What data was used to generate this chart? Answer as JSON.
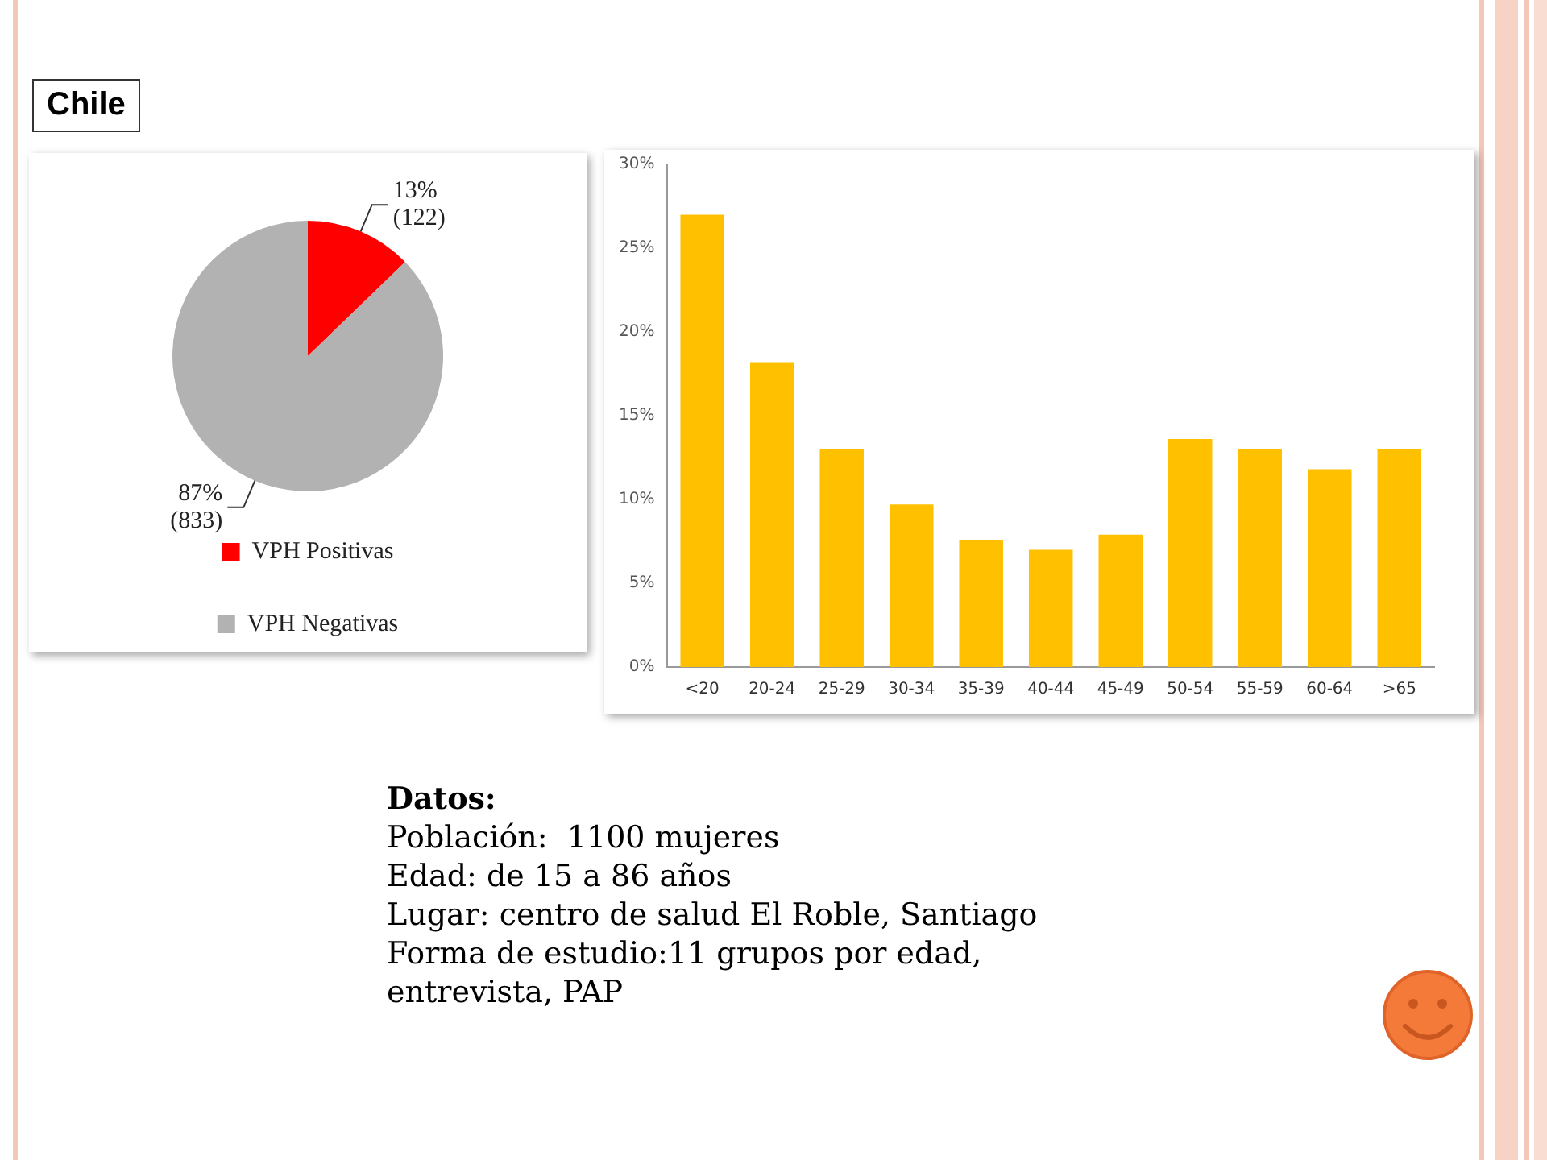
{
  "chart_data": [
    {
      "type": "pie",
      "title": "Chile",
      "categories": [
        "VPH Positivas",
        "VPH Negativas"
      ],
      "values": [
        122,
        833
      ],
      "colors": [
        "#ff0000",
        "#b2b2b2"
      ],
      "value_labels": [
        "13%\n(122)",
        "87%\n(833)"
      ],
      "legend": "bottom"
    },
    {
      "type": "bar",
      "categories": [
        "<20",
        "20-24",
        "25-29",
        "30-34",
        "35-39",
        "40-44",
        "45-49",
        "50-54",
        "55-59",
        "60-64",
        ">65"
      ],
      "values": [
        27.0,
        18.2,
        13.0,
        9.7,
        7.6,
        7.0,
        7.9,
        13.6,
        13.0,
        11.8,
        13.0
      ],
      "color": "#ffc000",
      "ylim": [
        0,
        30
      ],
      "yticks": [
        {
          "value": 0,
          "label": "0%"
        },
        {
          "value": 5,
          "label": "5%"
        },
        {
          "value": 10,
          "label": "10%"
        },
        {
          "value": 15,
          "label": "15%"
        },
        {
          "value": 20,
          "label": "20%"
        },
        {
          "value": 25,
          "label": "25%"
        },
        {
          "value": 30,
          "label": "30%"
        }
      ],
      "grid": false,
      "legend": false
    },
    {
      "type": "other",
      "title": "Datos:",
      "annotations": [
        "Población:  1100 mujeres",
        "Edad: de 15 a 86 años",
        "Lugar: centro de salud El Roble, Santiago",
        "Forma de estudio:11 grupos por edad, entrevista, PAP"
      ]
    }
  ]
}
